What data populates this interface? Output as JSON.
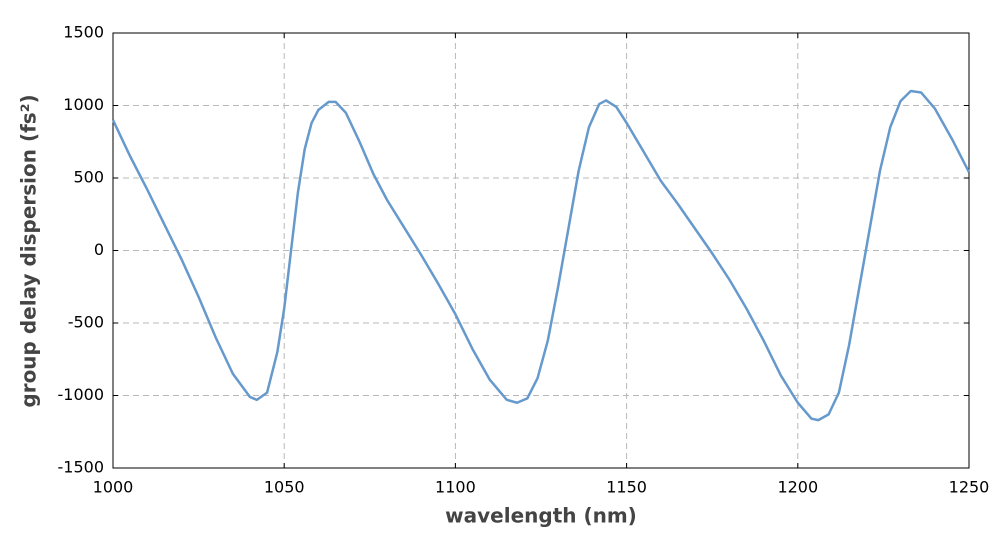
{
  "chart_data": {
    "type": "line",
    "xlabel": "wavelength (nm)",
    "ylabel": "group delay dispersion (fs²)",
    "x": [
      1000,
      1005,
      1010,
      1015,
      1020,
      1025,
      1030,
      1035,
      1040,
      1042,
      1045,
      1048,
      1050,
      1052,
      1054,
      1056,
      1058,
      1060,
      1063,
      1065,
      1068,
      1072,
      1076,
      1080,
      1085,
      1090,
      1095,
      1100,
      1105,
      1110,
      1115,
      1118,
      1121,
      1124,
      1127,
      1130,
      1133,
      1136,
      1139,
      1142,
      1144,
      1147,
      1150,
      1155,
      1160,
      1165,
      1170,
      1175,
      1180,
      1185,
      1190,
      1195,
      1200,
      1204,
      1206,
      1209,
      1212,
      1215,
      1218,
      1221,
      1224,
      1227,
      1230,
      1233,
      1236,
      1240,
      1245,
      1250
    ],
    "values": [
      900,
      650,
      420,
      180,
      -60,
      -320,
      -600,
      -850,
      -1010,
      -1030,
      -980,
      -700,
      -400,
      0,
      400,
      700,
      880,
      970,
      1025,
      1025,
      950,
      750,
      530,
      350,
      160,
      -30,
      -230,
      -440,
      -680,
      -890,
      -1030,
      -1050,
      -1020,
      -880,
      -620,
      -250,
      150,
      550,
      850,
      1010,
      1035,
      990,
      880,
      680,
      480,
      320,
      150,
      -20,
      -200,
      -400,
      -620,
      -860,
      -1050,
      -1160,
      -1170,
      -1130,
      -980,
      -650,
      -250,
      150,
      550,
      850,
      1030,
      1100,
      1090,
      980,
      770,
      540
    ],
    "color": "#6699cc",
    "xlim": [
      1000,
      1250
    ],
    "xticks": [
      1000,
      1050,
      1100,
      1150,
      1200,
      1250
    ],
    "ylim": [
      -1500,
      1500
    ],
    "yticks": [
      -1500,
      -1000,
      -500,
      0,
      500,
      1000,
      1500
    ],
    "grid": true
  }
}
